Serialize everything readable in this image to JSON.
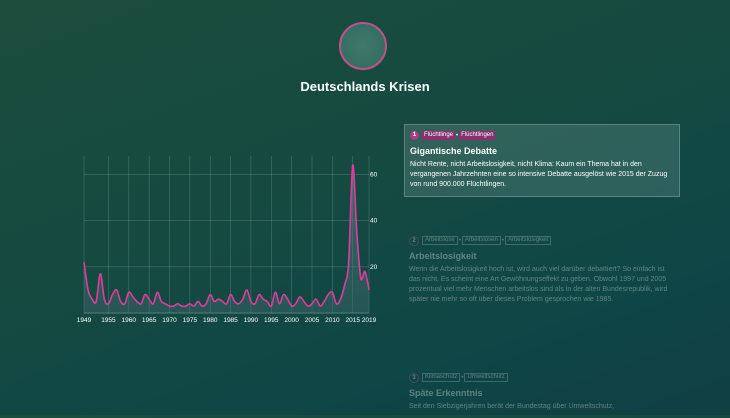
{
  "page": {
    "title": "Deutschlands Krisen"
  },
  "colors": {
    "accent": "#c0508c",
    "line": "#e03c9c",
    "background": "#154a41"
  },
  "chart_data": {
    "type": "line",
    "x": [
      1949,
      1950,
      1951,
      1952,
      1953,
      1954,
      1955,
      1956,
      1957,
      1958,
      1959,
      1960,
      1961,
      1962,
      1963,
      1964,
      1965,
      1966,
      1967,
      1968,
      1969,
      1970,
      1971,
      1972,
      1973,
      1974,
      1975,
      1976,
      1977,
      1978,
      1979,
      1980,
      1981,
      1982,
      1983,
      1984,
      1985,
      1986,
      1987,
      1988,
      1989,
      1990,
      1991,
      1992,
      1993,
      1994,
      1995,
      1996,
      1997,
      1998,
      1999,
      2000,
      2001,
      2002,
      2003,
      2004,
      2005,
      2006,
      2007,
      2008,
      2009,
      2010,
      2011,
      2012,
      2013,
      2014,
      2015,
      2016,
      2017,
      2018,
      2019
    ],
    "series": [
      {
        "values": [
          22,
          10,
          6,
          5,
          17,
          6,
          4,
          8,
          10,
          5,
          4,
          9,
          7,
          5,
          4,
          8,
          6,
          4,
          9,
          5,
          4,
          3,
          3,
          4,
          3,
          3,
          4,
          3,
          5,
          3,
          4,
          8,
          5,
          6,
          5,
          4,
          8,
          5,
          4,
          6,
          10,
          5,
          4,
          8,
          6,
          5,
          3,
          9,
          4,
          8,
          6,
          3,
          4,
          7,
          5,
          3,
          4,
          6,
          3,
          5,
          8,
          9,
          4,
          6,
          12,
          22,
          64,
          35,
          15,
          18,
          10
        ]
      }
    ],
    "xticks": [
      1949,
      1955,
      1960,
      1965,
      1970,
      1975,
      1980,
      1985,
      1990,
      1995,
      2000,
      2005,
      2010,
      2015,
      2019
    ],
    "yticks": [
      20,
      40,
      60
    ],
    "ylim": [
      0,
      68
    ],
    "grid": true,
    "ytick_position": "right"
  },
  "sections": [
    {
      "number": "1",
      "tags": [
        "Flüchtlinge",
        "Flüchtlingen"
      ],
      "title": "Gigantische Debatte",
      "body": "Nicht Rente, nicht Arbeitslosigkeit, nicht Klima: Kaum ein Thema hat in den vergangenen Jahrzehnten eine so intensive Debatte ausgelöst wie 2015 der Zuzug von rund 900.000 Flüchtlingen."
    },
    {
      "number": "2",
      "tags": [
        "Arbeitslose",
        "Arbeitslosen",
        "Arbeitslosigkeit"
      ],
      "title": "Arbeitslosigkeit",
      "body": "Wenn die Arbeitslosigkeit hoch ist, wird auch viel darüber debattiert? So einfach ist das nicht. Es scheint eine Art Gewöhnungseffekt zu geben. Obwohl 1997 und 2005 prozentual viel mehr Menschen arbeitslos sind als in der alten Bundesrepublik, wird später nie mehr so oft über dieses Problem gesprochen wie 1985."
    },
    {
      "number": "3",
      "tags": [
        "Klimaschutz",
        "Umweltschutz"
      ],
      "title": "Späte Erkenntnis",
      "body": "Seit den Siebzigerjahren berät der Bundestag über Umweltschutz,"
    }
  ]
}
